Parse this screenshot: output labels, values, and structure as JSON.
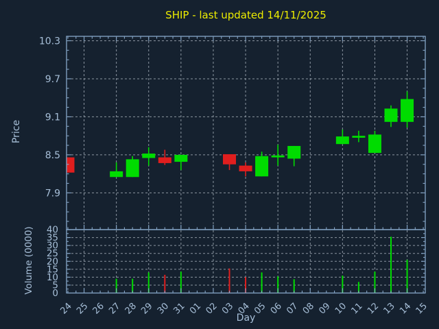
{
  "chart_data": {
    "type": "candlestick",
    "title": "SHIP - last updated 14/11/2025",
    "xlabel": "Day",
    "x_categories": [
      "24",
      "25",
      "26",
      "27",
      "28",
      "29",
      "30",
      "31",
      "01",
      "02",
      "03",
      "04",
      "05",
      "06",
      "07",
      "08",
      "09",
      "10",
      "11",
      "12",
      "13",
      "14",
      "15"
    ],
    "price_panel": {
      "ylabel": "Price",
      "yticks": [
        10.3,
        9.7,
        9.1,
        8.5,
        7.9
      ],
      "ytick_labels": [
        "10.3",
        "9.7",
        "9.1",
        "8.5",
        "7.9"
      ],
      "ylim": [
        7.32,
        10.37
      ],
      "grid": "dashed",
      "candles": [
        {
          "day": "24",
          "open": 8.46,
          "high": 8.46,
          "low": 8.22,
          "close": 8.22
        },
        {
          "day": "27",
          "open": 8.15,
          "high": 8.38,
          "low": 8.15,
          "close": 8.24
        },
        {
          "day": "28",
          "open": 8.15,
          "high": 8.48,
          "low": 8.15,
          "close": 8.43
        },
        {
          "day": "29",
          "open": 8.45,
          "high": 8.62,
          "low": 8.33,
          "close": 8.52
        },
        {
          "day": "30",
          "open": 8.46,
          "high": 8.58,
          "low": 8.34,
          "close": 8.37
        },
        {
          "day": "31",
          "open": 8.39,
          "high": 8.5,
          "low": 8.26,
          "close": 8.5
        },
        {
          "day": "03",
          "open": 8.51,
          "high": 8.51,
          "low": 8.26,
          "close": 8.35
        },
        {
          "day": "04",
          "open": 8.33,
          "high": 8.38,
          "low": 8.16,
          "close": 8.24
        },
        {
          "day": "05",
          "open": 8.16,
          "high": 8.55,
          "low": 8.16,
          "close": 8.48
        },
        {
          "day": "06",
          "open": 8.46,
          "high": 8.66,
          "low": 8.33,
          "close": 8.49
        },
        {
          "day": "07",
          "open": 8.44,
          "high": 8.64,
          "low": 8.32,
          "close": 8.64
        },
        {
          "day": "10",
          "open": 8.67,
          "high": 8.9,
          "low": 8.67,
          "close": 8.79
        },
        {
          "day": "11",
          "open": 8.77,
          "high": 8.88,
          "low": 8.7,
          "close": 8.8
        },
        {
          "day": "12",
          "open": 8.53,
          "high": 8.88,
          "low": 8.53,
          "close": 8.82
        },
        {
          "day": "13",
          "open": 9.02,
          "high": 9.28,
          "low": 8.94,
          "close": 9.23
        },
        {
          "day": "14",
          "open": 9.02,
          "high": 9.5,
          "low": 8.93,
          "close": 9.38
        }
      ]
    },
    "volume_panel": {
      "ylabel": "Volume (0000)",
      "yticks": [
        0,
        5,
        10,
        15,
        20,
        25,
        30,
        35,
        40
      ],
      "ytick_labels": [
        "0",
        "5",
        "10",
        "15",
        "20",
        "25",
        "30",
        "35",
        "40"
      ],
      "ylim": [
        0,
        40
      ],
      "grid": "dashed",
      "bars": [
        {
          "day": "24",
          "volume": 0
        },
        {
          "day": "27",
          "volume": 9
        },
        {
          "day": "28",
          "volume": 9
        },
        {
          "day": "29",
          "volume": 13
        },
        {
          "day": "30",
          "volume": 11.5
        },
        {
          "day": "31",
          "volume": 13.5
        },
        {
          "day": "03",
          "volume": 15.5
        },
        {
          "day": "04",
          "volume": 10
        },
        {
          "day": "05",
          "volume": 13
        },
        {
          "day": "06",
          "volume": 10.5
        },
        {
          "day": "07",
          "volume": 8.7
        },
        {
          "day": "10",
          "volume": 11
        },
        {
          "day": "11",
          "volume": 7
        },
        {
          "day": "12",
          "volume": 13.5
        },
        {
          "day": "13",
          "volume": 35.5
        },
        {
          "day": "14",
          "volume": 21
        }
      ]
    },
    "colors": {
      "background": "#15212F",
      "axis": "#87A7C9",
      "grid": "#AAB4BE",
      "tick_text": "#A7BFD8",
      "title_text": "#EDED00",
      "candle_up": "#00DC00",
      "candle_down": "#E01E1E"
    }
  }
}
